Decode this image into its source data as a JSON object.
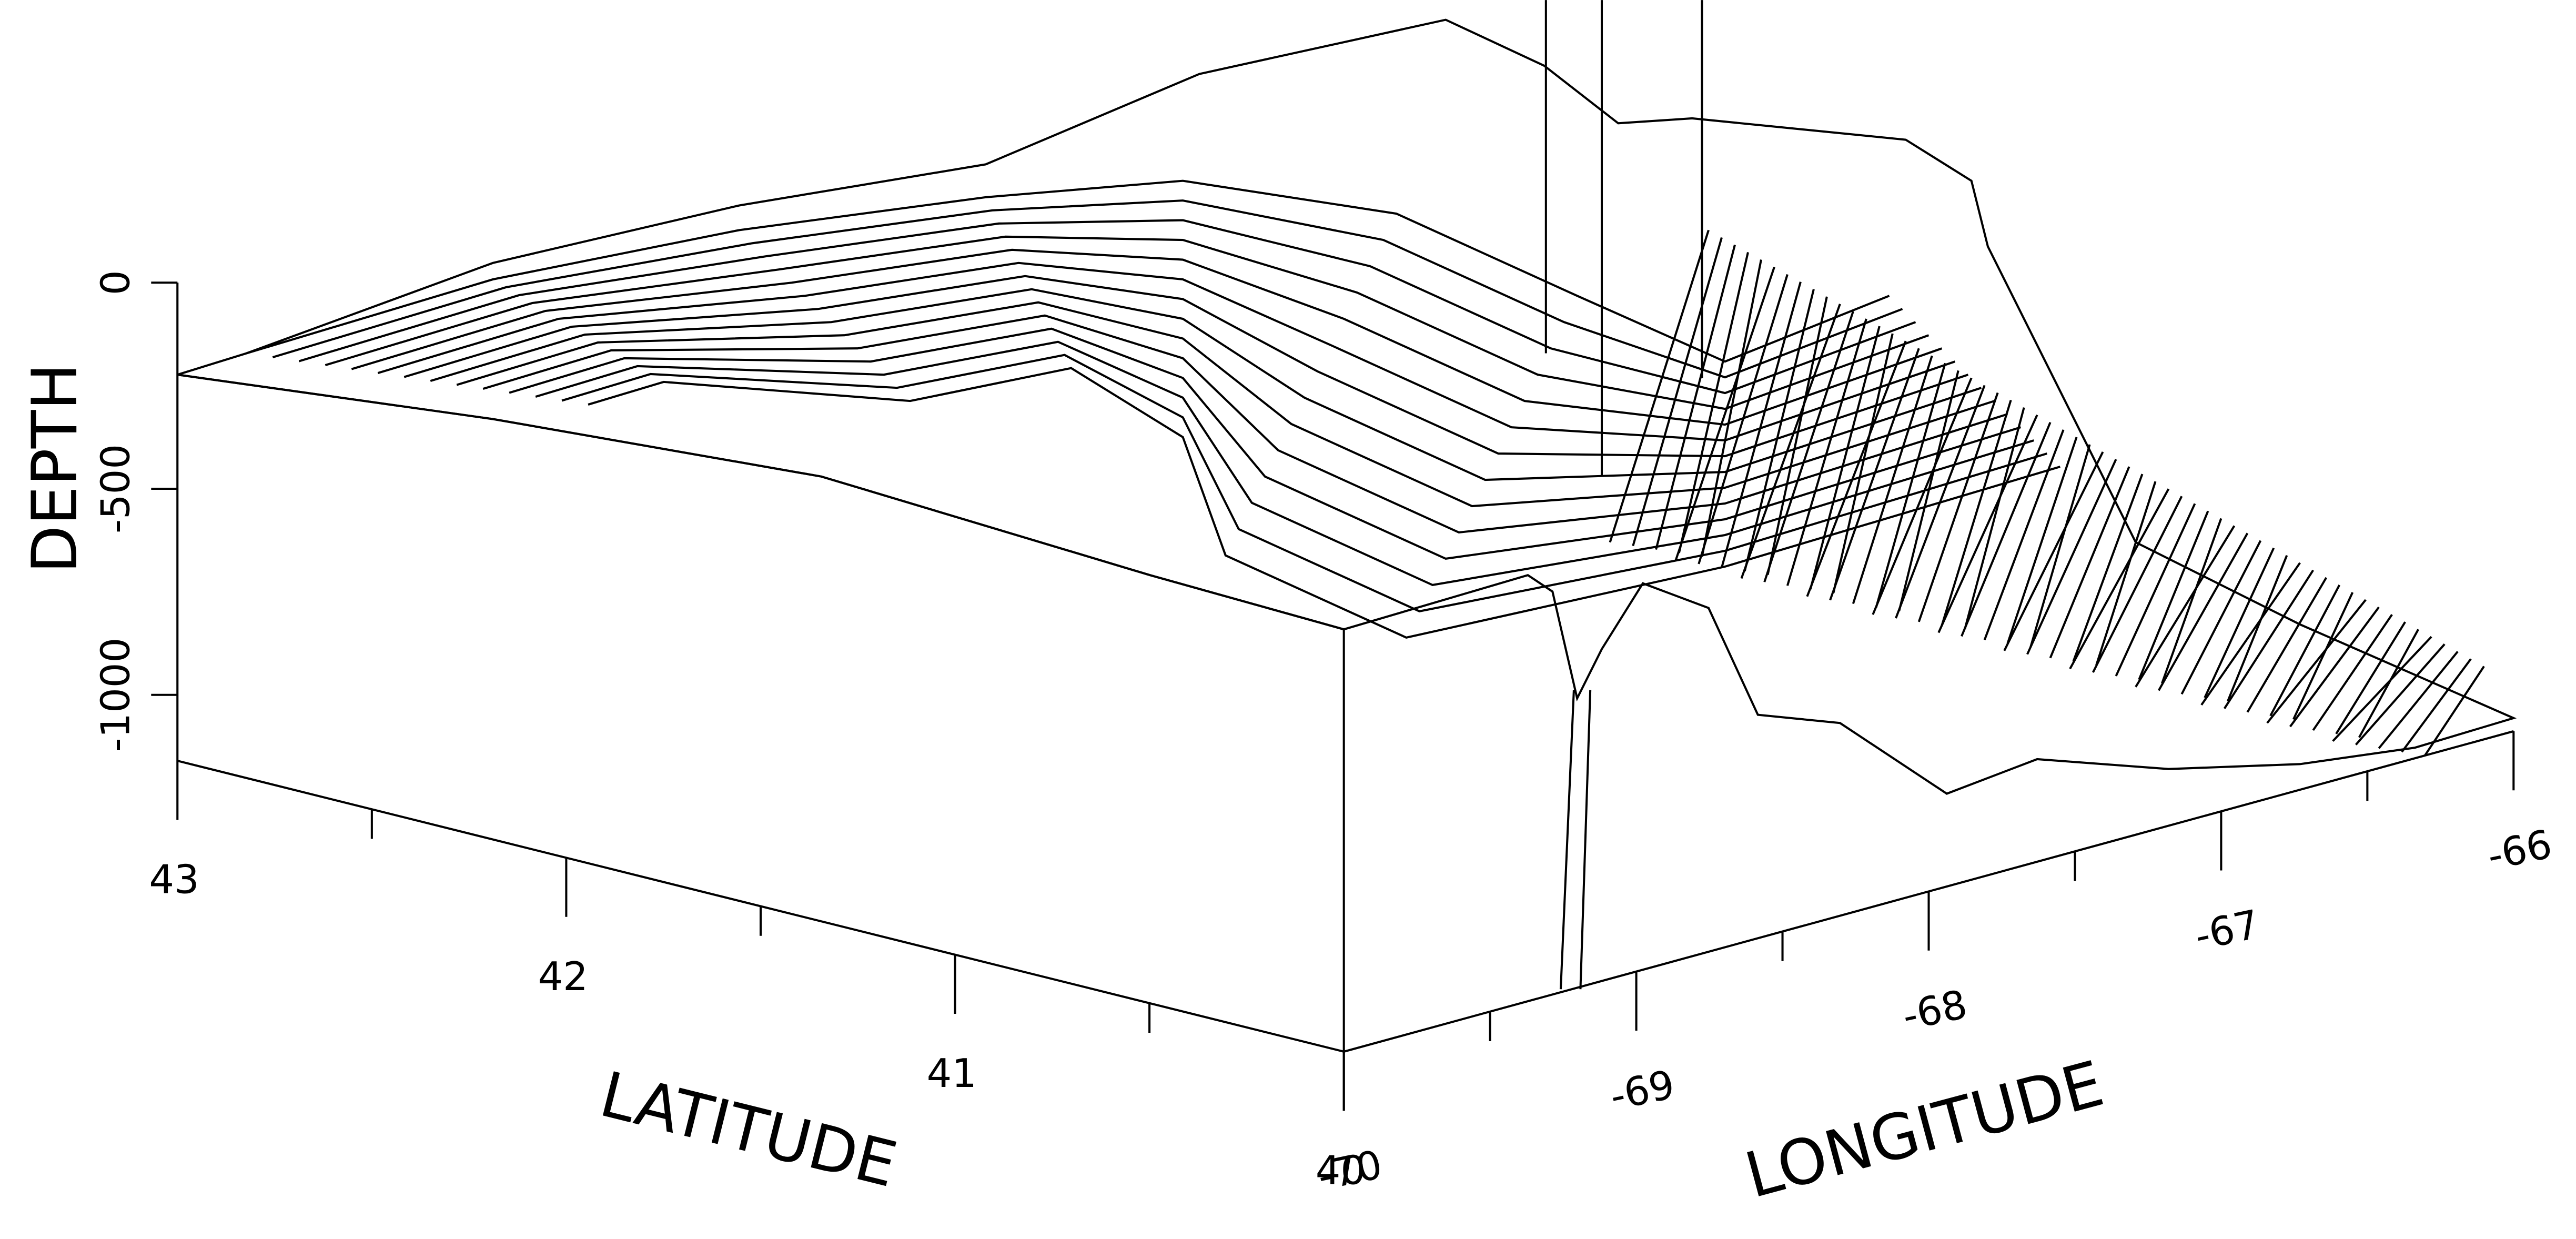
{
  "chart_data": {
    "type": "surface3d",
    "z_label": "DEPTH",
    "x_label": "LATITUDE",
    "y_label": "LONGITUDE",
    "zlim": [
      -1160,
      0
    ],
    "zticks": [
      0,
      -500,
      -1000
    ],
    "xlim": [
      43,
      40
    ],
    "xticks": [
      43,
      42,
      41,
      40
    ],
    "ylim": [
      -70,
      -66
    ],
    "yticks": [
      -70,
      -69,
      -68,
      -67,
      -66
    ],
    "color": "#000000"
  }
}
